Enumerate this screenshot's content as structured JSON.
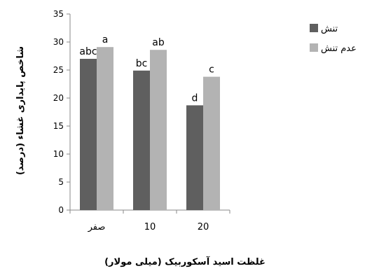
{
  "chart_data": {
    "type": "bar",
    "categories": [
      "صفر",
      "10",
      "20"
    ],
    "series": [
      {
        "name": "تنش",
        "color": "#5f5f5f",
        "values": [
          27.0,
          24.9,
          18.7
        ],
        "labels": [
          "abc",
          "bc",
          "d"
        ]
      },
      {
        "name": "عدم تنش",
        "color": "#b3b3b3",
        "values": [
          29.1,
          28.6,
          23.8
        ],
        "labels": [
          "a",
          "ab",
          "c"
        ]
      }
    ],
    "xlabel": "غلظت اسید آسکوربیک (میلی مولار)",
    "ylabel": "شاخص پایداری غشاء (درصد)",
    "ylim": [
      0,
      35
    ],
    "yticks": [
      0,
      5,
      10,
      15,
      20,
      25,
      30,
      35
    ],
    "grid": false,
    "legend_position": "right"
  }
}
